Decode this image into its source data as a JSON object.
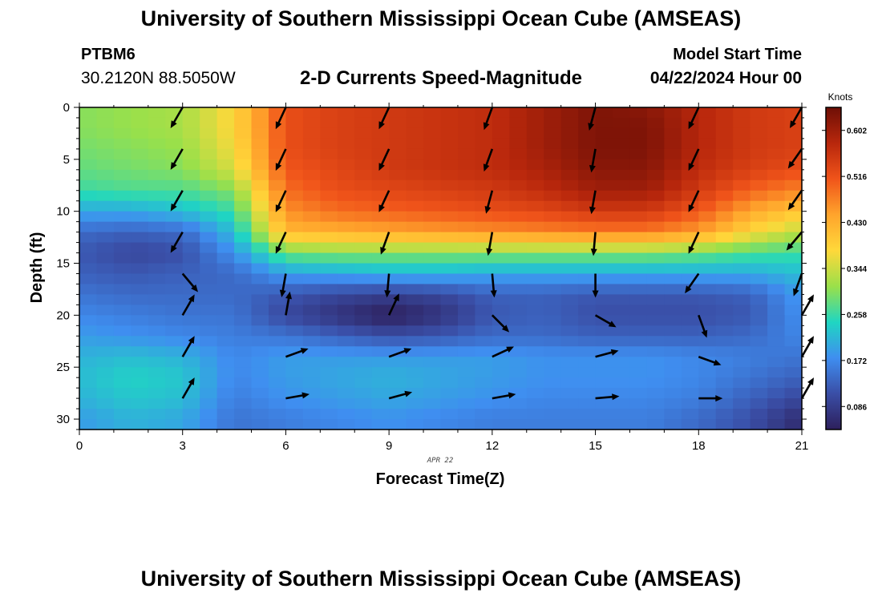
{
  "header": {
    "title": "University of Southern Mississippi Ocean Cube (AMSEAS)",
    "station_id": "PTBM6",
    "station_coords": "30.2120N  88.5050W",
    "subtitle": "2-D Currents Speed-Magnitude",
    "model_start_label": "Model Start Time",
    "model_start_value": "04/22/2024 Hour 00"
  },
  "footer": {
    "title": "University of Southern Mississippi Ocean Cube (AMSEAS)"
  },
  "chart_data": {
    "type": "heatmap",
    "xlabel": "Forecast Time(Z)",
    "ylabel": "Depth (ft)",
    "date_label": "APR 22",
    "xlim": [
      0,
      21
    ],
    "ylim": [
      0,
      31
    ],
    "y_inverted": true,
    "x_ticks": [
      0,
      3,
      6,
      9,
      12,
      15,
      18,
      21
    ],
    "y_ticks": [
      0,
      5,
      10,
      15,
      20,
      25,
      30
    ],
    "colorbar": {
      "label": "Knots",
      "ticks": [
        "0.086",
        "0.172",
        "0.258",
        "0.344",
        "0.430",
        "0.516",
        "0.602"
      ],
      "range": [
        0.043,
        0.645
      ],
      "colors": [
        "#2d1f5c",
        "#3a4ea6",
        "#3f8ef0",
        "#1fd6c2",
        "#9ae04a",
        "#ffd83a",
        "#ffa42c",
        "#f0541a",
        "#b8270c",
        "#6e0f06"
      ]
    },
    "arrow_style": "black vectors indicating current direction",
    "x": [
      0,
      1.5,
      3,
      4.5,
      6,
      7.5,
      9,
      10.5,
      12,
      13.5,
      15,
      16.5,
      18,
      19.5,
      21
    ],
    "depth": [
      0,
      2,
      4,
      6,
      8,
      10,
      12,
      14,
      16,
      18,
      20,
      22,
      24,
      26,
      28,
      30
    ],
    "speed": [
      [
        0.3,
        0.31,
        0.32,
        0.38,
        0.52,
        0.54,
        0.55,
        0.56,
        0.57,
        0.6,
        0.63,
        0.62,
        0.58,
        0.55,
        0.54
      ],
      [
        0.3,
        0.31,
        0.32,
        0.38,
        0.52,
        0.54,
        0.55,
        0.56,
        0.57,
        0.6,
        0.63,
        0.63,
        0.58,
        0.55,
        0.54
      ],
      [
        0.29,
        0.3,
        0.31,
        0.37,
        0.52,
        0.54,
        0.55,
        0.56,
        0.57,
        0.6,
        0.63,
        0.63,
        0.58,
        0.55,
        0.54
      ],
      [
        0.28,
        0.29,
        0.3,
        0.35,
        0.51,
        0.53,
        0.55,
        0.56,
        0.57,
        0.59,
        0.62,
        0.62,
        0.57,
        0.54,
        0.52
      ],
      [
        0.26,
        0.27,
        0.27,
        0.3,
        0.49,
        0.52,
        0.53,
        0.54,
        0.55,
        0.57,
        0.6,
        0.6,
        0.55,
        0.5,
        0.47
      ],
      [
        0.2,
        0.2,
        0.22,
        0.26,
        0.46,
        0.49,
        0.5,
        0.51,
        0.52,
        0.53,
        0.55,
        0.55,
        0.51,
        0.44,
        0.4
      ],
      [
        0.14,
        0.13,
        0.14,
        0.22,
        0.42,
        0.43,
        0.44,
        0.45,
        0.46,
        0.47,
        0.48,
        0.48,
        0.45,
        0.38,
        0.33
      ],
      [
        0.12,
        0.1,
        0.11,
        0.18,
        0.29,
        0.3,
        0.3,
        0.3,
        0.3,
        0.3,
        0.3,
        0.3,
        0.29,
        0.27,
        0.26
      ],
      [
        0.13,
        0.12,
        0.13,
        0.14,
        0.19,
        0.2,
        0.21,
        0.21,
        0.2,
        0.2,
        0.2,
        0.2,
        0.2,
        0.2,
        0.22
      ],
      [
        0.15,
        0.14,
        0.14,
        0.14,
        0.12,
        0.1,
        0.09,
        0.1,
        0.13,
        0.13,
        0.12,
        0.12,
        0.12,
        0.13,
        0.19
      ],
      [
        0.17,
        0.16,
        0.15,
        0.15,
        0.1,
        0.07,
        0.04,
        0.07,
        0.12,
        0.13,
        0.11,
        0.11,
        0.11,
        0.12,
        0.18
      ],
      [
        0.19,
        0.18,
        0.17,
        0.16,
        0.15,
        0.13,
        0.11,
        0.12,
        0.14,
        0.14,
        0.13,
        0.13,
        0.13,
        0.14,
        0.17
      ],
      [
        0.21,
        0.22,
        0.21,
        0.17,
        0.19,
        0.19,
        0.19,
        0.19,
        0.19,
        0.18,
        0.18,
        0.18,
        0.17,
        0.16,
        0.15
      ],
      [
        0.22,
        0.24,
        0.23,
        0.17,
        0.19,
        0.2,
        0.21,
        0.2,
        0.19,
        0.18,
        0.18,
        0.18,
        0.17,
        0.15,
        0.13
      ],
      [
        0.21,
        0.23,
        0.22,
        0.16,
        0.18,
        0.19,
        0.2,
        0.19,
        0.18,
        0.17,
        0.17,
        0.17,
        0.16,
        0.13,
        0.1
      ],
      [
        0.19,
        0.21,
        0.2,
        0.15,
        0.16,
        0.17,
        0.18,
        0.17,
        0.16,
        0.16,
        0.16,
        0.16,
        0.14,
        0.11,
        0.06
      ]
    ],
    "vectors": [
      {
        "x": 3,
        "depth": 0,
        "dir": 210
      },
      {
        "x": 3,
        "depth": 4,
        "dir": 210
      },
      {
        "x": 3,
        "depth": 8,
        "dir": 210
      },
      {
        "x": 3,
        "depth": 12,
        "dir": 210
      },
      {
        "x": 3,
        "depth": 16,
        "dir": 140
      },
      {
        "x": 3,
        "depth": 20,
        "dir": 30
      },
      {
        "x": 3,
        "depth": 24,
        "dir": 30
      },
      {
        "x": 3,
        "depth": 28,
        "dir": 30
      },
      {
        "x": 6,
        "depth": 0,
        "dir": 205
      },
      {
        "x": 6,
        "depth": 4,
        "dir": 205
      },
      {
        "x": 6,
        "depth": 8,
        "dir": 205
      },
      {
        "x": 6,
        "depth": 12,
        "dir": 205
      },
      {
        "x": 6,
        "depth": 16,
        "dir": 190
      },
      {
        "x": 6,
        "depth": 20,
        "dir": 10
      },
      {
        "x": 6,
        "depth": 24,
        "dir": 70
      },
      {
        "x": 6,
        "depth": 28,
        "dir": 80
      },
      {
        "x": 9,
        "depth": 0,
        "dir": 205
      },
      {
        "x": 9,
        "depth": 4,
        "dir": 205
      },
      {
        "x": 9,
        "depth": 8,
        "dir": 205
      },
      {
        "x": 9,
        "depth": 12,
        "dir": 200
      },
      {
        "x": 9,
        "depth": 16,
        "dir": 185
      },
      {
        "x": 9,
        "depth": 20,
        "dir": 25
      },
      {
        "x": 9,
        "depth": 24,
        "dir": 70
      },
      {
        "x": 9,
        "depth": 28,
        "dir": 75
      },
      {
        "x": 12,
        "depth": 0,
        "dir": 200
      },
      {
        "x": 12,
        "depth": 4,
        "dir": 200
      },
      {
        "x": 12,
        "depth": 8,
        "dir": 195
      },
      {
        "x": 12,
        "depth": 12,
        "dir": 190
      },
      {
        "x": 12,
        "depth": 16,
        "dir": 175
      },
      {
        "x": 12,
        "depth": 20,
        "dir": 135
      },
      {
        "x": 12,
        "depth": 24,
        "dir": 65
      },
      {
        "x": 12,
        "depth": 28,
        "dir": 80
      },
      {
        "x": 15,
        "depth": 0,
        "dir": 195
      },
      {
        "x": 15,
        "depth": 4,
        "dir": 190
      },
      {
        "x": 15,
        "depth": 8,
        "dir": 190
      },
      {
        "x": 15,
        "depth": 12,
        "dir": 185
      },
      {
        "x": 15,
        "depth": 16,
        "dir": 180
      },
      {
        "x": 15,
        "depth": 20,
        "dir": 120
      },
      {
        "x": 15,
        "depth": 24,
        "dir": 75
      },
      {
        "x": 15,
        "depth": 28,
        "dir": 85
      },
      {
        "x": 18,
        "depth": 0,
        "dir": 205
      },
      {
        "x": 18,
        "depth": 4,
        "dir": 205
      },
      {
        "x": 18,
        "depth": 8,
        "dir": 205
      },
      {
        "x": 18,
        "depth": 12,
        "dir": 205
      },
      {
        "x": 18,
        "depth": 16,
        "dir": 215
      },
      {
        "x": 18,
        "depth": 20,
        "dir": 160
      },
      {
        "x": 18,
        "depth": 24,
        "dir": 110
      },
      {
        "x": 18,
        "depth": 28,
        "dir": 90
      },
      {
        "x": 21,
        "depth": 0,
        "dir": 210
      },
      {
        "x": 21,
        "depth": 4,
        "dir": 215
      },
      {
        "x": 21,
        "depth": 8,
        "dir": 215
      },
      {
        "x": 21,
        "depth": 12,
        "dir": 220
      },
      {
        "x": 21,
        "depth": 16,
        "dir": 200
      },
      {
        "x": 21,
        "depth": 20,
        "dir": 30
      },
      {
        "x": 21,
        "depth": 24,
        "dir": 30
      },
      {
        "x": 21,
        "depth": 28,
        "dir": 30
      }
    ]
  }
}
